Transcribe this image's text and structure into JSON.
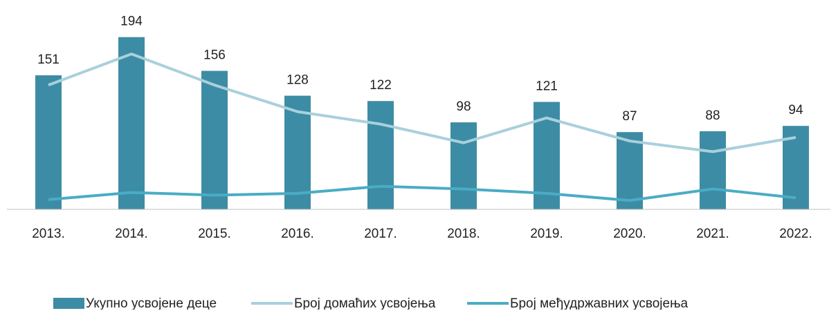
{
  "chart_data": {
    "type": "bar",
    "categories": [
      "2013.",
      "2014.",
      "2015.",
      "2016.",
      "2017.",
      "2018.",
      "2019.",
      "2020.",
      "2021.",
      "2022."
    ],
    "ylim": [
      0,
      200
    ],
    "series": [
      {
        "name": "Укупно усвојене деце",
        "type": "bar",
        "color": "#3d8ca5",
        "values": [
          151,
          194,
          156,
          128,
          122,
          98,
          121,
          87,
          88,
          94
        ]
      },
      {
        "name": "Број домаћих усвојења",
        "type": "line",
        "color": "#a9d0dc",
        "values": [
          140,
          175,
          140,
          110,
          96,
          75,
          103,
          77,
          65,
          81
        ]
      },
      {
        "name": "Број међудржавних усвојења",
        "type": "line",
        "color": "#4aacc5",
        "values": [
          11,
          19,
          16,
          18,
          26,
          23,
          18,
          10,
          23,
          13
        ]
      }
    ]
  }
}
